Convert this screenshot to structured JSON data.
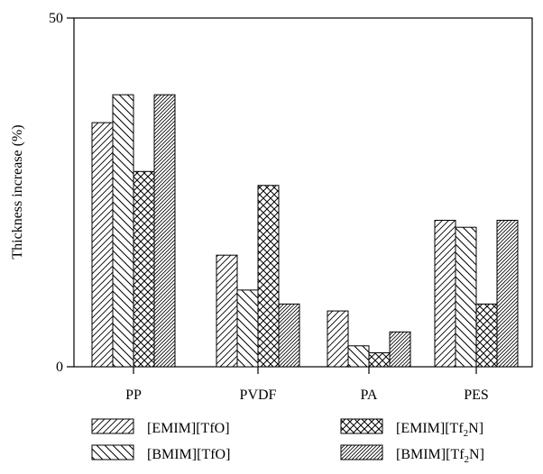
{
  "chart_data": {
    "type": "bar",
    "title": "",
    "xlabel": "",
    "ylabel": "Thickness increase (%)",
    "ylim": [
      0,
      50
    ],
    "yticks": [
      0,
      50
    ],
    "categories": [
      "PP",
      "PVDF",
      "PA",
      "PES"
    ],
    "series": [
      {
        "name": "[EMIM][TfO]",
        "label_main": "[EMIM][TfO]",
        "label_sub": "",
        "label_tail": "",
        "pattern": "diag-sparse",
        "values": [
          35,
          16,
          8,
          21
        ]
      },
      {
        "name": "[BMIM][TfO]",
        "label_main": "[BMIM][TfO]",
        "label_sub": "",
        "label_tail": "",
        "pattern": "backdiag",
        "values": [
          39,
          11,
          3,
          20
        ]
      },
      {
        "name": "[EMIM][Tf2N]",
        "label_main": "[EMIM][Tf",
        "label_sub": "2",
        "label_tail": "N]",
        "pattern": "crosshatch",
        "values": [
          28,
          26,
          2,
          9
        ]
      },
      {
        "name": "[BMIM][Tf2N]",
        "label_main": "[BMIM][Tf",
        "label_sub": "2",
        "label_tail": "N]",
        "pattern": "diag-dense",
        "values": [
          39,
          9,
          5,
          21
        ]
      }
    ],
    "grid": false,
    "legend_position": "bottom"
  }
}
